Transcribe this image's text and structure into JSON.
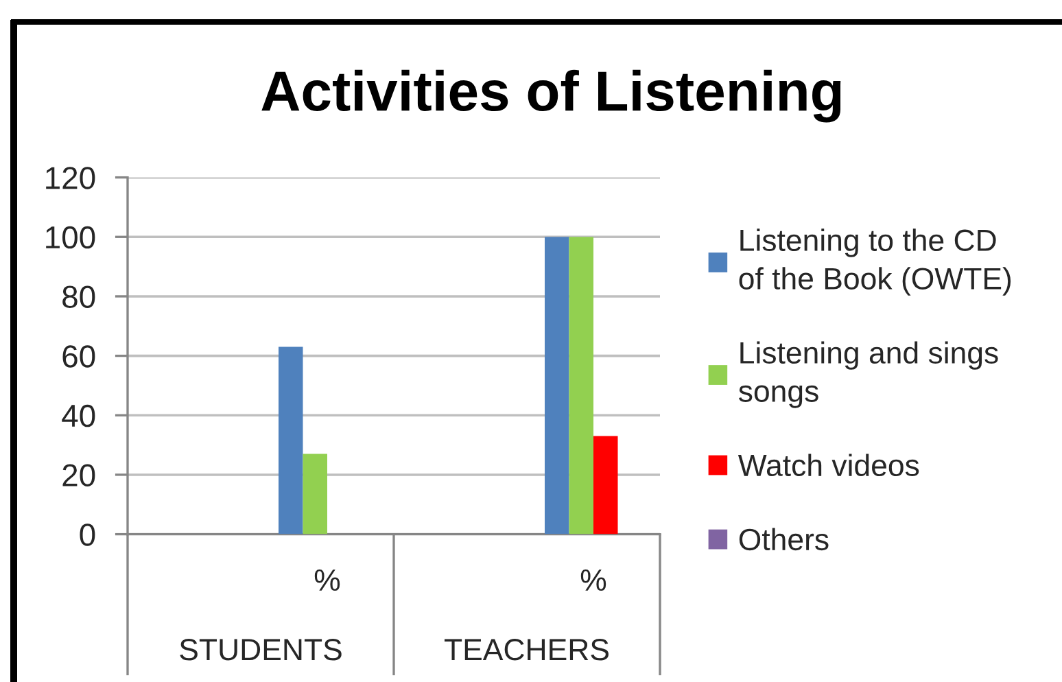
{
  "chart_data": {
    "type": "bar",
    "title": "Activities of Listening",
    "categories": [
      null,
      "%",
      null,
      "%"
    ],
    "series": [
      {
        "name": "Listening to the CD of the Book (OWTE)",
        "color": "#4f81bd",
        "values": [
          null,
          63,
          null,
          100
        ]
      },
      {
        "name": "Listening and sings songs",
        "color": "#92d050",
        "values": [
          null,
          27,
          null,
          100
        ]
      },
      {
        "name": "Watch videos",
        "color": "#ff0000",
        "values": [
          null,
          0,
          null,
          33
        ]
      },
      {
        "name": "Others",
        "color": "#8064a2",
        "values": [
          null,
          0,
          null,
          0
        ]
      }
    ],
    "annotations": [
      "STUDENTS",
      "TEACHERS"
    ],
    "ylim": [
      0,
      120
    ],
    "yticks": [
      0,
      20,
      40,
      60,
      80,
      100,
      120
    ],
    "grid": "y",
    "legend": "right"
  }
}
